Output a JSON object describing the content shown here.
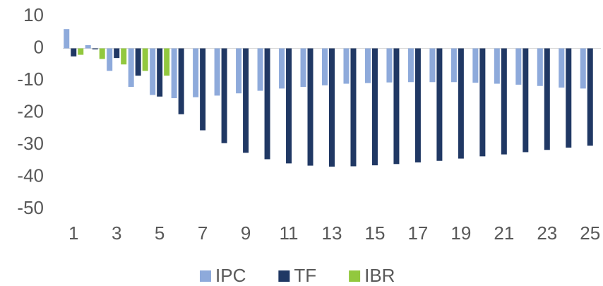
{
  "chart_data": {
    "type": "bar",
    "categories": [
      "1",
      null,
      "3",
      null,
      "5",
      null,
      "7",
      null,
      "9",
      null,
      "11",
      null,
      "13",
      null,
      "15",
      null,
      "17",
      null,
      "19",
      null,
      "21",
      null,
      "23",
      null,
      "25"
    ],
    "series": [
      {
        "name": "IPC",
        "color": "#8eaadb",
        "values": [
          6,
          1,
          -7,
          -12,
          -14.5,
          -15.5,
          -15.2,
          -14.7,
          -14,
          -13.2,
          -12.5,
          -12,
          -11.5,
          -11,
          -10.8,
          -10.6,
          -10.5,
          -10.5,
          -10.5,
          -10.7,
          -11,
          -11.3,
          -11.7,
          -12.2,
          -12.5
        ]
      },
      {
        "name": "TF",
        "color": "#203864",
        "values": [
          -2.5,
          -0.3,
          -3,
          -8.5,
          -15,
          -20.5,
          -25.5,
          -29.5,
          -32.5,
          -34.5,
          -35.8,
          -36.5,
          -36.8,
          -36.7,
          -36.4,
          -36,
          -35.5,
          -35,
          -34.3,
          -33.6,
          -33,
          -32.3,
          -31.6,
          -30.9,
          -30.3
        ]
      },
      {
        "name": "IBR",
        "color": "#92c83e",
        "values": [
          -2,
          -3.3,
          -5,
          -7,
          -8.5,
          null,
          null,
          null,
          null,
          null,
          null,
          null,
          null,
          null,
          null,
          null,
          null,
          null,
          null,
          null,
          null,
          null,
          null,
          null,
          null
        ]
      }
    ],
    "ylim": [
      -50,
      10
    ],
    "yticks": [
      -50,
      -40,
      -30,
      -20,
      -10,
      0,
      10
    ],
    "grid": false,
    "legend": "bottom"
  }
}
